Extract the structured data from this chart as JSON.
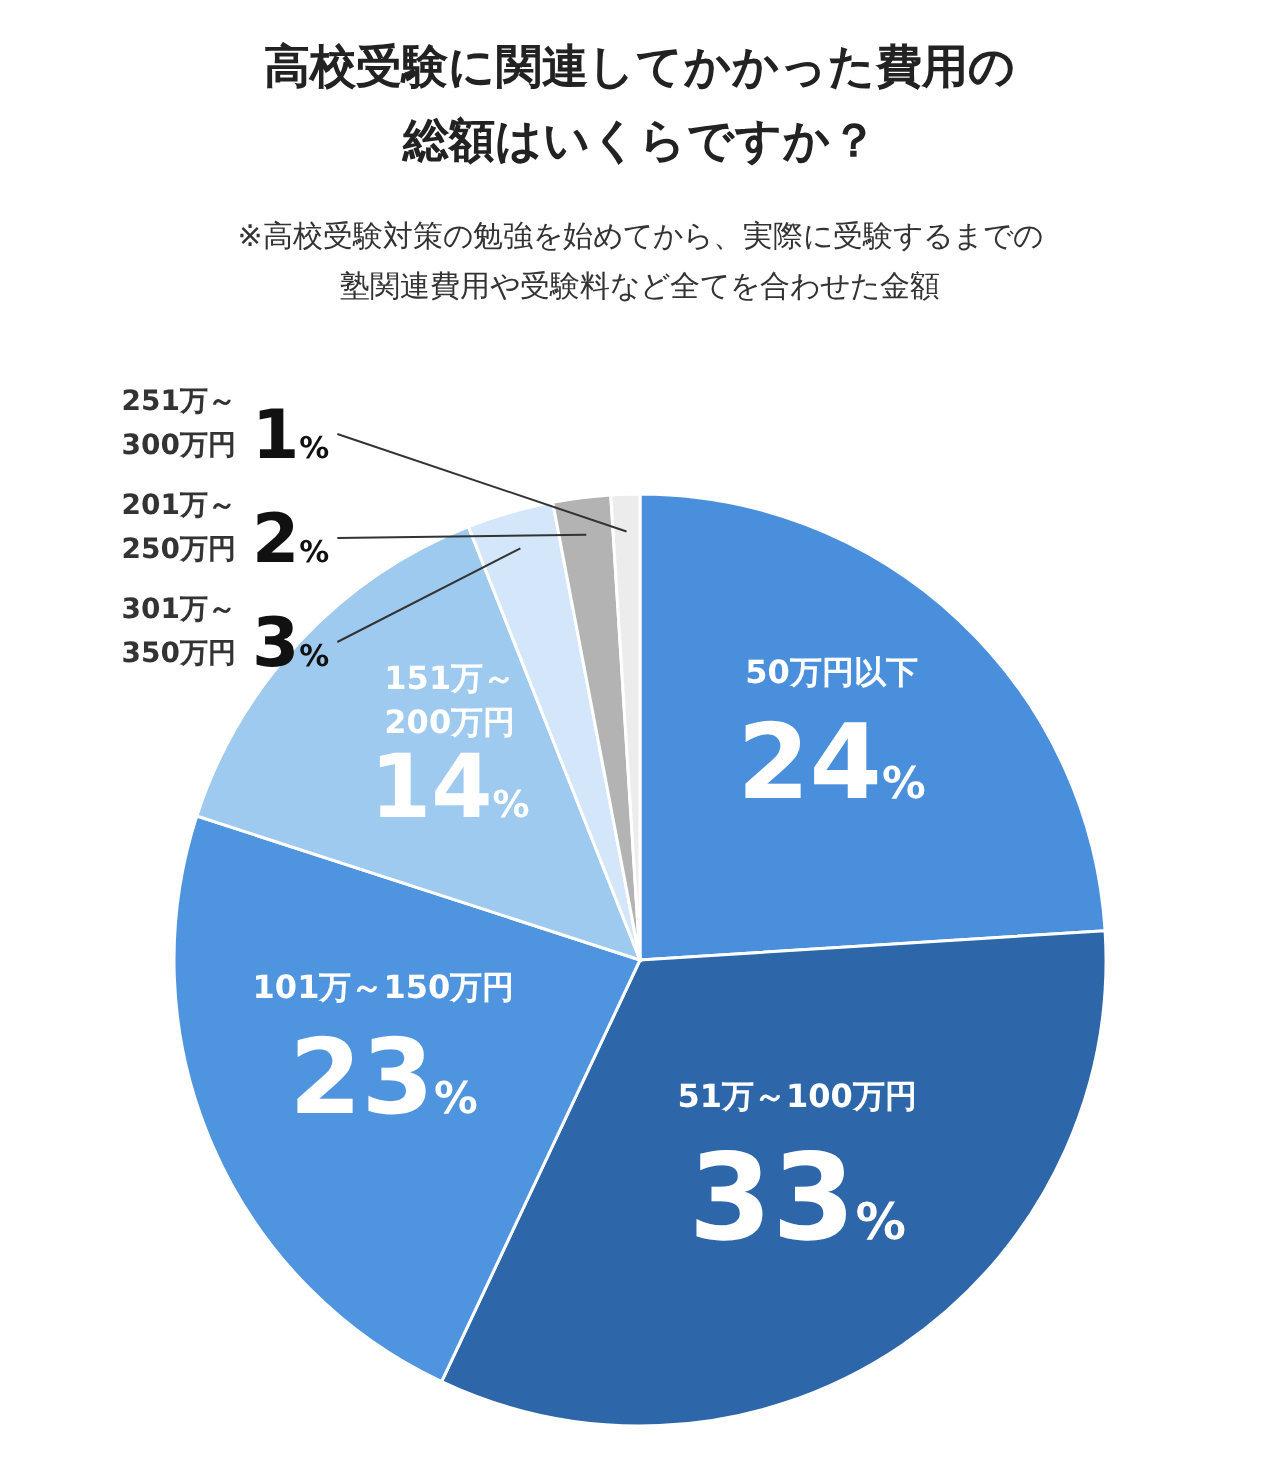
{
  "chart_data": {
    "type": "pie",
    "title": "高校受験に関連してかかった費用の総額はいくらですか？",
    "subtitle": "※高校受験対策の勉強を始めてから、実際に受験するまでの塾関連費用や受験料など全てを合わせた金額",
    "categories": [
      "50万円以下",
      "51万～100万円",
      "101万～150万円",
      "151万～\n200万円",
      "301万～\n350万円",
      "201万～\n250万円",
      "251万～\n300万円"
    ],
    "values": [
      24,
      33,
      23,
      14,
      3,
      2,
      1
    ],
    "value_labels": [
      "24%",
      "33%",
      "23%",
      "14%",
      "3%",
      "2%",
      "1%"
    ],
    "colors": [
      "#4a8fdc",
      "#2d66a9",
      "#4f94de",
      "#9fcaf0",
      "#d3e6fa",
      "#b3b3b3",
      "#ececec"
    ]
  }
}
